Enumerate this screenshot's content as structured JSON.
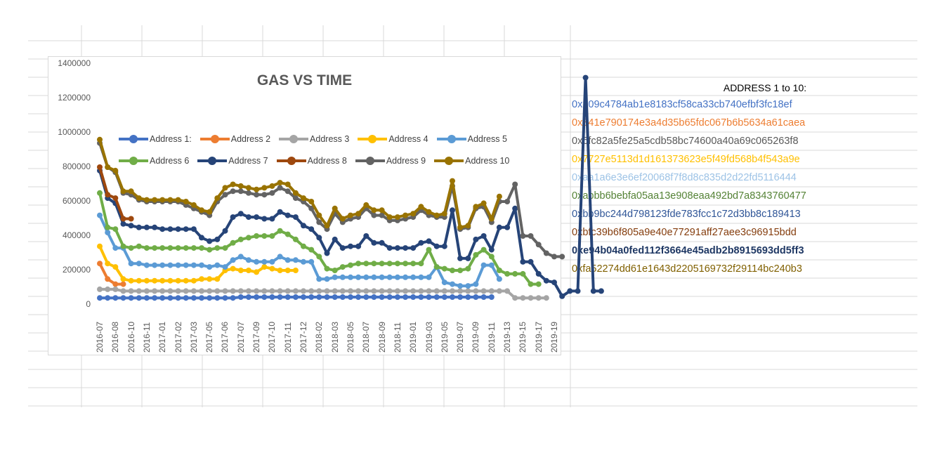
{
  "chart_data": {
    "type": "line",
    "title": "GAS VS TIME",
    "ylim": [
      0,
      1400000
    ],
    "yticks": [
      "0",
      "200000",
      "400000",
      "600000",
      "800000",
      "1000000",
      "1200000",
      "1400000"
    ],
    "xtick_labels": [
      "2016-07",
      "2016-08",
      "2016-10",
      "2016-11",
      "2017-01",
      "2017-02",
      "2017-03",
      "2017-05",
      "2017-06",
      "2017-07",
      "2017-09",
      "2017-10",
      "2017-11",
      "2017-12",
      "2018-02",
      "2018-03",
      "2018-05",
      "2018-07",
      "2018-09",
      "2018-11",
      "2019-01",
      "2019-03",
      "2019-05",
      "2019-07",
      "2019-09",
      "2019-11",
      "2019-13",
      "2019-15",
      "2019-17",
      "2019-19"
    ],
    "n_points": 59,
    "legend_position": "top",
    "series": [
      {
        "name": "Address 1:",
        "color": "#4472C4",
        "start": 0,
        "values": [
          40000,
          40000,
          40000,
          40000,
          40000,
          40000,
          40000,
          40000,
          40000,
          40000,
          40000,
          40000,
          40000,
          40000,
          40000,
          40000,
          40000,
          40000,
          45000,
          45000,
          45000,
          45000,
          45000,
          45000,
          45000,
          45000,
          45000,
          45000,
          45000,
          45000,
          45000,
          45000,
          45000,
          45000,
          45000,
          45000,
          45000,
          45000,
          45000,
          45000,
          45000,
          45000,
          45000,
          45000,
          45000,
          45000,
          45000,
          45000,
          45000,
          45000,
          45000
        ]
      },
      {
        "name": "Address 2",
        "color": "#ED7D31",
        "start": 0,
        "values": [
          240000,
          150000,
          120000,
          120000
        ]
      },
      {
        "name": "Address 3",
        "color": "#A5A5A5",
        "start": 0,
        "values": [
          90000,
          90000,
          90000,
          80000,
          80000,
          80000,
          80000,
          80000,
          80000,
          80000,
          80000,
          80000,
          80000,
          80000,
          80000,
          80000,
          80000,
          80000,
          80000,
          80000,
          80000,
          80000,
          80000,
          80000,
          80000,
          80000,
          80000,
          80000,
          80000,
          80000,
          80000,
          80000,
          80000,
          80000,
          80000,
          80000,
          80000,
          80000,
          80000,
          80000,
          80000,
          80000,
          80000,
          80000,
          80000,
          80000,
          80000,
          80000,
          80000,
          80000,
          80000,
          80000,
          80000,
          40000,
          40000,
          40000,
          40000,
          40000
        ]
      },
      {
        "name": "Address 4",
        "color": "#FFC000",
        "start": 0,
        "values": [
          340000,
          240000,
          220000,
          150000,
          140000,
          140000,
          140000,
          140000,
          140000,
          140000,
          140000,
          140000,
          140000,
          150000,
          150000,
          150000,
          200000,
          210000,
          200000,
          200000,
          190000,
          220000,
          210000,
          200000,
          200000,
          200000
        ]
      },
      {
        "name": "Address 5",
        "color": "#5B9BD5",
        "start": 0,
        "values": [
          520000,
          420000,
          330000,
          330000,
          240000,
          240000,
          230000,
          230000,
          230000,
          230000,
          230000,
          230000,
          230000,
          230000,
          220000,
          230000,
          220000,
          260000,
          280000,
          260000,
          250000,
          250000,
          250000,
          280000,
          260000,
          260000,
          250000,
          250000,
          150000,
          150000,
          160000,
          160000,
          160000,
          160000,
          160000,
          160000,
          160000,
          160000,
          160000,
          160000,
          160000,
          160000,
          160000,
          220000,
          130000,
          120000,
          110000,
          110000,
          120000,
          230000,
          230000,
          150000
        ]
      },
      {
        "name": "Address 6",
        "color": "#70AD47",
        "start": 0,
        "values": [
          650000,
          450000,
          440000,
          340000,
          330000,
          340000,
          330000,
          330000,
          330000,
          330000,
          330000,
          330000,
          330000,
          330000,
          320000,
          330000,
          330000,
          360000,
          380000,
          390000,
          400000,
          400000,
          400000,
          430000,
          410000,
          380000,
          340000,
          320000,
          280000,
          210000,
          200000,
          220000,
          230000,
          240000,
          240000,
          240000,
          240000,
          240000,
          240000,
          240000,
          240000,
          240000,
          320000,
          220000,
          210000,
          200000,
          200000,
          210000,
          290000,
          320000,
          280000,
          200000,
          180000,
          180000,
          180000,
          120000,
          120000
        ]
      },
      {
        "name": "Address 7",
        "color": "#264478",
        "start": 0,
        "values": [
          780000,
          620000,
          590000,
          470000,
          460000,
          450000,
          450000,
          450000,
          440000,
          440000,
          440000,
          440000,
          440000,
          390000,
          370000,
          380000,
          430000,
          510000,
          530000,
          510000,
          510000,
          500000,
          500000,
          540000,
          520000,
          510000,
          460000,
          440000,
          390000,
          300000,
          380000,
          330000,
          340000,
          340000,
          400000,
          360000,
          360000,
          330000,
          330000,
          330000,
          330000,
          360000,
          370000,
          340000,
          340000,
          550000,
          270000,
          270000,
          380000,
          400000,
          320000,
          450000,
          450000,
          560000,
          250000,
          250000,
          180000,
          140000,
          130000,
          50000,
          80000,
          80000,
          1320000,
          80000,
          80000
        ]
      },
      {
        "name": "Address 8",
        "color": "#9E480E",
        "start": 0,
        "values": [
          800000,
          640000,
          620000,
          500000,
          500000
        ]
      },
      {
        "name": "Address 9",
        "color": "#636363",
        "start": 0,
        "values": [
          940000,
          800000,
          770000,
          650000,
          640000,
          610000,
          600000,
          600000,
          600000,
          600000,
          600000,
          580000,
          560000,
          540000,
          520000,
          600000,
          640000,
          660000,
          660000,
          650000,
          640000,
          640000,
          650000,
          680000,
          660000,
          620000,
          600000,
          560000,
          480000,
          440000,
          530000,
          480000,
          500000,
          510000,
          560000,
          520000,
          520000,
          490000,
          490000,
          500000,
          510000,
          550000,
          520000,
          510000,
          510000,
          690000,
          440000,
          450000,
          560000,
          570000,
          480000,
          600000,
          600000,
          700000,
          400000,
          400000,
          350000,
          300000,
          280000,
          280000
        ]
      },
      {
        "name": "Address 10",
        "color": "#997300",
        "start": 0,
        "values": [
          960000,
          800000,
          780000,
          660000,
          660000,
          620000,
          610000,
          610000,
          610000,
          610000,
          610000,
          600000,
          580000,
          550000,
          540000,
          620000,
          680000,
          700000,
          690000,
          680000,
          670000,
          680000,
          690000,
          710000,
          700000,
          650000,
          620000,
          600000,
          520000,
          460000,
          560000,
          500000,
          520000,
          530000,
          580000,
          550000,
          550000,
          510000,
          510000,
          520000,
          530000,
          570000,
          540000,
          520000,
          530000,
          720000,
          450000,
          460000,
          570000,
          590000,
          500000,
          630000
        ]
      }
    ]
  },
  "address_panel": {
    "header": "ADDRESS 1 to 10:",
    "lines": [
      {
        "text": "0x209c4784ab1e8183cf58ca33cb740efbf3fc18ef",
        "color": "#4472C4",
        "bold": false
      },
      {
        "text": "0x341e790174e3a4d35b65fdc067b6b5634a61caea",
        "color": "#ED7D31",
        "bold": false
      },
      {
        "text": "0x6fc82a5fe25a5cdb58bc74600a40a69c065263f8",
        "color": "#595959",
        "bold": false
      },
      {
        "text": "0x7727e5113d1d161373623e5f49fd568b4f543a9e",
        "color": "#FFC000",
        "bold": false
      },
      {
        "text": "0xaa1a6e3e6ef20068f7f8d8c835d2d22fd5116444",
        "color": "#9DC3E6",
        "bold": false
      },
      {
        "text": "0xabbb6bebfa05aa13e908eaa492bd7a8343760477",
        "color": "#548235",
        "bold": false
      },
      {
        "text": "0xbb9bc244d798123fde783fcc1c72d3bb8c189413",
        "color": "#2F5597",
        "bold": false
      },
      {
        "text": "0xbfc39b6f805a9e40e77291aff27aee3c96915bdd",
        "color": "#843C0C",
        "bold": false
      },
      {
        "text": "0xe94b04a0fed112f3664e45adb2b8915693dd5ff3",
        "color": "#1F3864",
        "bold": true
      },
      {
        "text": "0xfa52274dd61e1643d2205169732f29114bc240b3",
        "color": "#806000",
        "bold": false
      }
    ]
  }
}
